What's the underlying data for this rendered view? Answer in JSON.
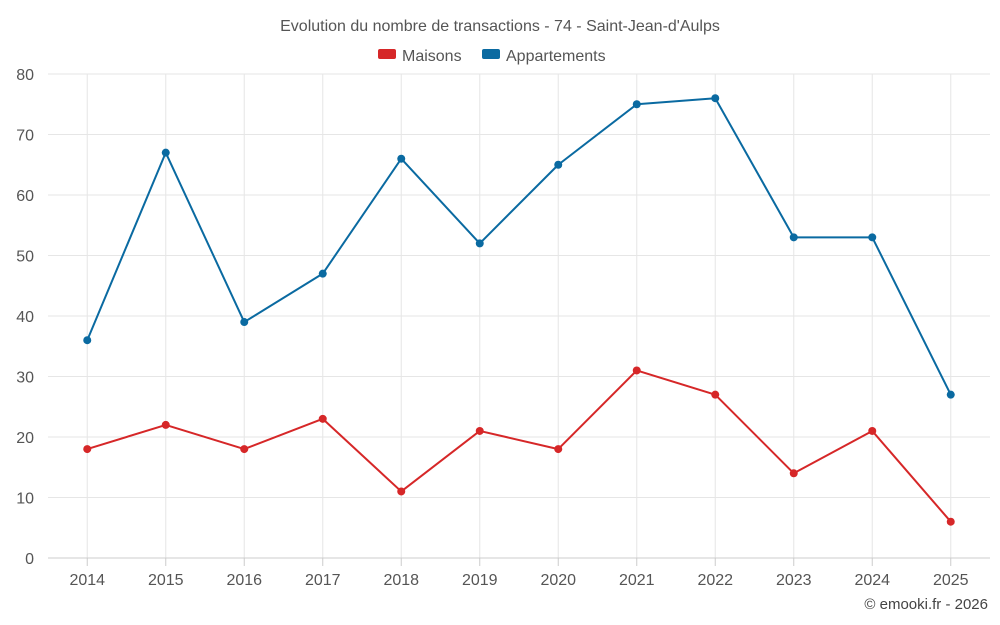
{
  "chart_data": {
    "type": "line",
    "title": "Evolution du nombre de transactions - 74 - Saint-Jean-d'Aulps",
    "xlabel": "",
    "ylabel": "",
    "categories": [
      "2014",
      "2015",
      "2016",
      "2017",
      "2018",
      "2019",
      "2020",
      "2021",
      "2022",
      "2023",
      "2024",
      "2025"
    ],
    "ylim": [
      0,
      80
    ],
    "yticks": [
      0,
      10,
      20,
      30,
      40,
      50,
      60,
      70,
      80
    ],
    "grid": true,
    "legend_position": "top-center",
    "series": [
      {
        "name": "Maisons",
        "color": "#d62728",
        "values": [
          18,
          22,
          18,
          23,
          11,
          21,
          18,
          31,
          27,
          14,
          21,
          6
        ]
      },
      {
        "name": "Appartements",
        "color": "#0a6aa1",
        "values": [
          36,
          67,
          39,
          47,
          66,
          52,
          65,
          75,
          76,
          53,
          53,
          27
        ]
      }
    ]
  },
  "credit": "© emooki.fr - 2026"
}
